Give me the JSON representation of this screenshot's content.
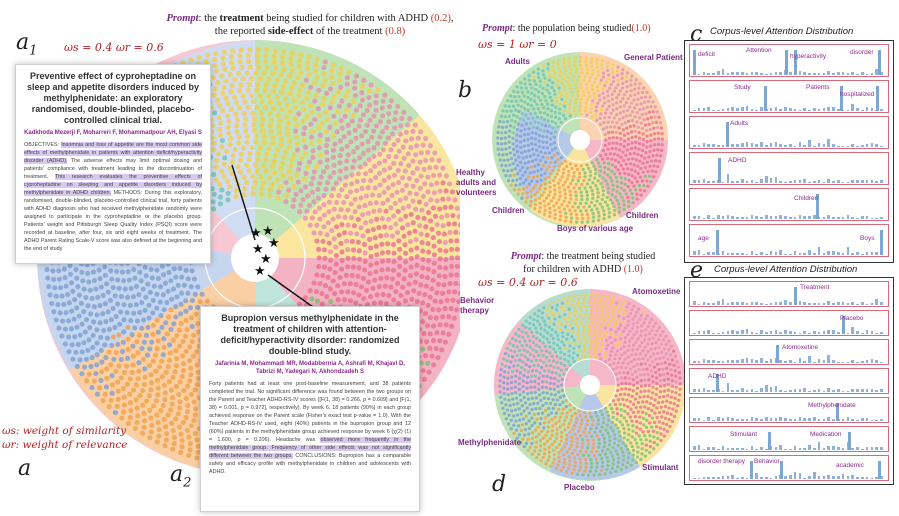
{
  "panel_a": {
    "letter_a1": "a",
    "sub_a1": "1",
    "letter_a2": "a",
    "sub_a2": "2",
    "letter_a": "a",
    "prompt_label": "Prompt",
    "prompt_part1": ": the ",
    "prompt_bold1": "treatment",
    "prompt_part2": " being studied for children with ADHD ",
    "prompt_weight1": "(0.2)",
    "prompt_part3": "the reported ",
    "prompt_bold2": "side-effect",
    "prompt_part4": " of the treatment ",
    "prompt_weight2": "(0.8)",
    "weights": "ωs = 0.4  ωr = 0.6",
    "legend_ws": "ωs: weight of similarity",
    "legend_wr": "ωr: weight of relevance",
    "card1": {
      "title": "Preventive effect of cyproheptadine on sleep and appetite disorders induced by methylphenidate: an exploratory randomised, double-blinded, placebo-controlled clinical trial.",
      "authors": "Kadkhoda Mezerji F, Moharreri F, Mohammadpour AH, Elyasi S",
      "body_pre": "OBJECTIVES: ",
      "body_hl1": "Insomnia and loss of appetite are the most common side effects of methylphenidate in patients with attention deficit/hyperactivity disorder (ADHD).",
      "body_mid": " The adverse effects may limit optimal dosing and patients' compliance with treatment leading to the discontinuation of treatment. ",
      "body_hl2": "This research evaluates the preventive effects of cyproheptadine on sleeping and appetite disorders induced by methylphenidate in ADHD children.",
      "body_post": " METHODS: During this exploratory, randomised, double-blinded, placebo-controlled clinical trial, forty patients with ADHD diagnosis who had received methylphenidate randomly were assigned to participate in the cyproheptadine or the placebo group. Patients' weight and Pittsburgh Sleep Quality Index (PSQI) score were recorded at baseline, after four, six and eight weeks of treatment. The ADHD Parent Rating Scale-V score was also defined at the beginning and the end of study"
    },
    "card2": {
      "title": "Bupropion versus methylphenidate in the treatment of children with attention-deficit/hyperactivity disorder: randomized double-blind study.",
      "authors": "Jafarinia M, Mohammadi MR, Modabbernia A, Ashrafi M, Khajavi D, Tabrizi M, Yadegari N, Akhondzadeh S",
      "body_pre": "Forty patients had at least one post-baseline measurement, and 38 patients completed the trial. No significant difference was found between the two groups on the Parent and Teacher ADHD-RS-IV scores ([F(1, 38) = 0.266, p = 0.609] and [F(1, 38) = 0.001, p = 0.972], respectively). By week 6, 18 patients (90%) in each group achieved response on the Parent scale (Fisher's exact test p-value = 1.0). With the Teacher ADHD-RS-IV used, eight (40%) patients in the bupropion group and 12 (60%) patients in the methylphenidate group achieved response by week 6 (χ(2) (1) = 1.600, p = 0.206). Headache was ",
      "body_hl": "observed more frequently in the methylphenidate group. Frequency of other side effects was not significantly different between the two groups.",
      "body_post": " CONCLUSIONS: Bupropion has a comparable safety and efficacy profile with methylphenidate in children and adolescents with ADHD."
    }
  },
  "panel_b": {
    "letter": "b",
    "prompt_label": "Prompt",
    "prompt_text": ": the population being studied",
    "prompt_weight": "(1.0)",
    "weights": "ωs = 1  ωr = 0",
    "labels": [
      "Adults",
      "General Patient",
      "Healthy adults and volunteers",
      "Children",
      "Boys of various age",
      "Children"
    ]
  },
  "panel_c": {
    "letter": "c",
    "title": "Corpus-level Attention Distribution",
    "rows": [
      {
        "words": [
          "deficit",
          "Attention",
          "hyperactivity",
          "disorder"
        ]
      },
      {
        "words": [
          "Study",
          "Patients",
          "hospitalized"
        ]
      },
      {
        "words": [
          "Adults"
        ]
      },
      {
        "words": [
          "ADHD"
        ]
      },
      {
        "words": [
          "Children"
        ]
      },
      {
        "words": [
          "age",
          "Boys"
        ]
      }
    ]
  },
  "panel_d": {
    "letter": "d",
    "prompt_label": "Prompt",
    "prompt_text1": ": the treatment being studied",
    "prompt_text2": "for children with ADHD",
    "prompt_weight": "(1.0)",
    "weights": "ωs = 0.4  ωr = 0.6",
    "labels": [
      "Behavior therapy",
      "Atomoxetine",
      "Methylphenidate",
      "Stimulant",
      "Placebo"
    ]
  },
  "panel_e": {
    "letter": "e",
    "title": "Corpus-level Attention Distribution",
    "rows": [
      {
        "words": [
          "Treatment"
        ]
      },
      {
        "words": [
          "Placebo"
        ]
      },
      {
        "words": [
          "Atomoxetine"
        ]
      },
      {
        "words": [
          "ADHD"
        ]
      },
      {
        "words": [
          "Methylphenidate"
        ]
      },
      {
        "words": [
          "Stimulant",
          "Medication"
        ]
      },
      {
        "words": [
          "disorder therapy",
          "Behavior",
          "academic"
        ]
      }
    ]
  },
  "colors": {
    "purple": "#7b2a83",
    "red": "#c0392b",
    "pink": "#f3a6b8",
    "green": "#9fd39a",
    "orange": "#f6b26b",
    "blue": "#9bb7dc",
    "teal": "#9fd6cc",
    "yellow": "#f7dc7a",
    "peach": "#f7c9a6"
  }
}
